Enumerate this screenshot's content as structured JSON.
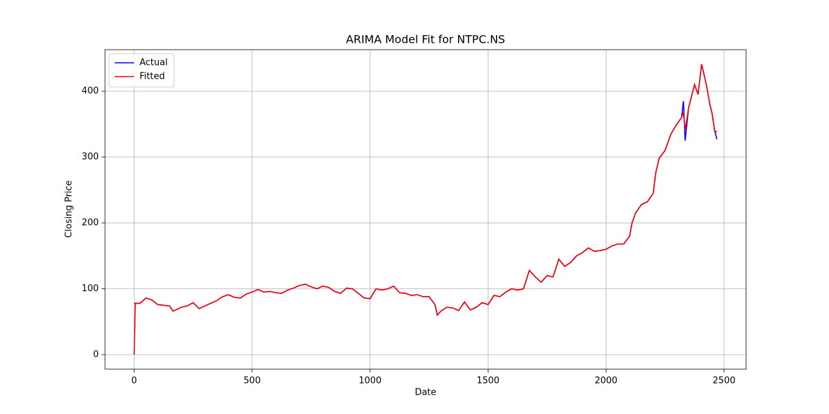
{
  "chart_data": {
    "type": "line",
    "title": "ARIMA Model Fit for NTPC.NS",
    "x_label": "Date",
    "y_label": "Closing Price",
    "x": [
      0,
      5,
      25,
      50,
      75,
      100,
      125,
      150,
      165,
      200,
      225,
      250,
      275,
      300,
      325,
      350,
      375,
      400,
      425,
      450,
      475,
      500,
      525,
      550,
      575,
      600,
      625,
      650,
      675,
      700,
      725,
      750,
      775,
      800,
      825,
      850,
      875,
      900,
      925,
      950,
      975,
      1000,
      1025,
      1050,
      1075,
      1100,
      1125,
      1150,
      1175,
      1200,
      1225,
      1250,
      1275,
      1285,
      1300,
      1325,
      1350,
      1375,
      1400,
      1425,
      1450,
      1475,
      1500,
      1525,
      1550,
      1575,
      1600,
      1625,
      1650,
      1675,
      1700,
      1725,
      1750,
      1775,
      1800,
      1825,
      1850,
      1875,
      1900,
      1925,
      1950,
      1975,
      2000,
      2025,
      2050,
      2075,
      2100,
      2110,
      2125,
      2150,
      2175,
      2200,
      2210,
      2225,
      2250,
      2275,
      2300,
      2320,
      2328,
      2335,
      2350,
      2375,
      2390,
      2405,
      2425,
      2440,
      2450,
      2460,
      2470
    ],
    "series": [
      {
        "name": "Actual",
        "color": "#0000ff",
        "values": [
          78,
          78,
          78,
          86,
          83,
          76,
          75,
          74,
          66,
          72,
          74,
          79,
          70,
          74,
          78,
          82,
          88,
          91,
          87,
          86,
          92,
          95,
          99,
          95,
          96,
          94,
          93,
          98,
          101,
          105,
          107,
          103,
          100,
          104,
          102,
          96,
          93,
          101,
          100,
          93,
          86,
          85,
          100,
          98,
          100,
          104,
          94,
          93,
          90,
          91,
          88,
          88,
          76,
          60,
          66,
          72,
          71,
          67,
          80,
          68,
          72,
          79,
          76,
          90,
          88,
          95,
          100,
          98,
          100,
          128,
          118,
          110,
          120,
          118,
          145,
          134,
          140,
          150,
          155,
          162,
          157,
          158,
          160,
          165,
          168,
          168,
          180,
          200,
          215,
          228,
          232,
          245,
          275,
          298,
          310,
          335,
          350,
          360,
          385,
          325,
          375,
          410,
          395,
          441,
          410,
          380,
          365,
          340,
          327
        ]
      },
      {
        "name": "Fitted",
        "color": "#ff0000",
        "values": [
          0,
          78,
          78,
          86,
          83,
          76,
          75,
          74,
          66,
          72,
          74,
          79,
          70,
          74,
          78,
          82,
          88,
          91,
          87,
          86,
          92,
          95,
          99,
          95,
          96,
          94,
          93,
          98,
          101,
          105,
          107,
          103,
          100,
          104,
          102,
          96,
          93,
          101,
          100,
          93,
          86,
          85,
          100,
          98,
          100,
          104,
          94,
          93,
          90,
          91,
          88,
          88,
          76,
          60,
          66,
          72,
          71,
          67,
          80,
          68,
          72,
          79,
          76,
          90,
          88,
          95,
          100,
          98,
          100,
          128,
          118,
          110,
          120,
          118,
          145,
          134,
          140,
          150,
          155,
          162,
          157,
          158,
          160,
          165,
          168,
          168,
          180,
          200,
          215,
          228,
          232,
          245,
          275,
          298,
          310,
          335,
          350,
          360,
          368,
          340,
          375,
          410,
          395,
          441,
          410,
          380,
          365,
          340,
          338
        ]
      }
    ],
    "xlim": [
      -123.5,
      2593.5
    ],
    "xticks": [
      0,
      500,
      1000,
      1500,
      2000,
      2500
    ],
    "ylim": [
      -22,
      463
    ],
    "yticks": [
      0,
      100,
      200,
      300,
      400
    ],
    "grid": true,
    "legend": "upper-left"
  }
}
